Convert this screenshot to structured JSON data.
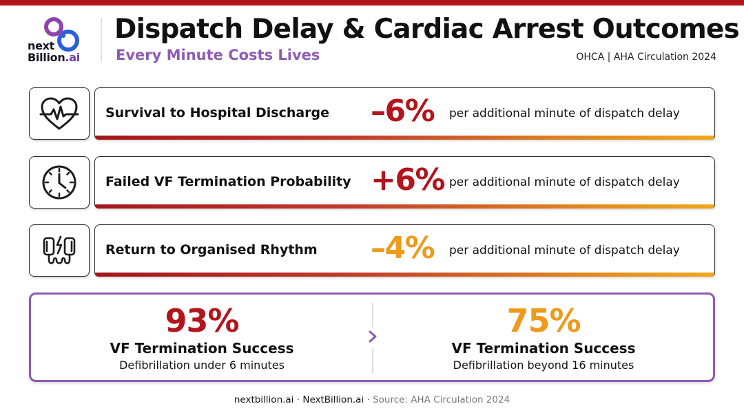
{
  "header": {
    "logo": {
      "line1": "next",
      "line2_main": "Billion",
      "line2_suffix": ".ai"
    },
    "title": "Dispatch Delay & Cardiac Arrest Outcomes",
    "subtitle": "Every Minute Costs Lives",
    "source": "OHCA | AHA Circulation 2024"
  },
  "rows": [
    {
      "icon": "heartbeat-icon",
      "label": "Survival to Hospital Discharge",
      "value": "–6%",
      "value_color": "#b3151d",
      "description": "per additional minute of dispatch delay"
    },
    {
      "icon": "clock-icon",
      "label": "Failed VF Termination Probability",
      "value": "+6%",
      "value_color": "#b3151d",
      "description": "per additional minute of dispatch delay"
    },
    {
      "icon": "defibrillator-paddles-icon",
      "label": "Return to Organised Rhythm",
      "value": "–4%",
      "value_color": "#ef9a1c",
      "description": "per additional minute of dispatch delay"
    }
  ],
  "summary": {
    "left": {
      "value": "93%",
      "title": "VF Termination Success",
      "description": "Defibrillation under 6 minutes",
      "color": "#b3151d"
    },
    "right": {
      "value": "75%",
      "title": "VF Termination Success",
      "description": "Defibrillation beyond 16 minutes",
      "color": "#ef9a1c"
    },
    "arrow_icon": "chevron-right-icon"
  },
  "footer": {
    "site1": "nextbillion.ai",
    "site2": "NextBillion.ai",
    "separator": "·",
    "source": "Source: AHA Circulation 2024"
  },
  "colors": {
    "accent_red": "#b3151d",
    "accent_orange": "#ef9a1c",
    "accent_purple": "#8c5bb3"
  }
}
